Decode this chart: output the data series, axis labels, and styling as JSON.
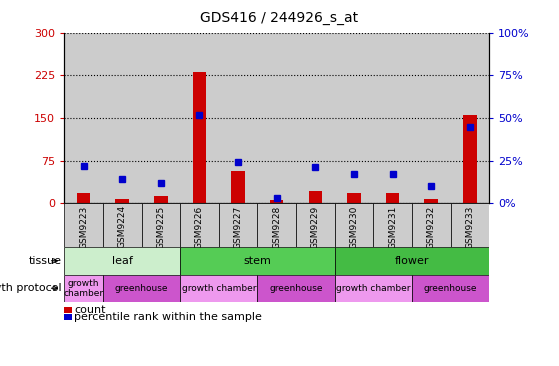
{
  "title": "GDS416 / 244926_s_at",
  "samples": [
    "GSM9223",
    "GSM9224",
    "GSM9225",
    "GSM9226",
    "GSM9227",
    "GSM9228",
    "GSM9229",
    "GSM9230",
    "GSM9231",
    "GSM9232",
    "GSM9233"
  ],
  "counts": [
    18,
    8,
    12,
    232,
    57,
    5,
    22,
    18,
    18,
    7,
    155
  ],
  "percentiles": [
    22,
    14,
    12,
    52,
    24,
    3,
    21,
    17,
    17,
    10,
    45
  ],
  "left_ylim": [
    0,
    300
  ],
  "right_ylim": [
    0,
    100
  ],
  "left_yticks": [
    0,
    75,
    150,
    225
  ],
  "right_yticks": [
    0,
    25,
    50,
    75,
    100
  ],
  "bar_color": "#cc0000",
  "dot_color": "#0000cc",
  "tissue_groups": [
    {
      "label": "leaf",
      "start": 0,
      "end": 3,
      "color": "#cceecc"
    },
    {
      "label": "stem",
      "start": 3,
      "end": 7,
      "color": "#55cc55"
    },
    {
      "label": "flower",
      "start": 7,
      "end": 11,
      "color": "#44bb44"
    }
  ],
  "growth_groups": [
    {
      "label": "growth\nchamber",
      "start": 0,
      "end": 1,
      "color": "#ee99ee"
    },
    {
      "label": "greenhouse",
      "start": 1,
      "end": 3,
      "color": "#cc55cc"
    },
    {
      "label": "growth chamber",
      "start": 3,
      "end": 5,
      "color": "#ee99ee"
    },
    {
      "label": "greenhouse",
      "start": 5,
      "end": 7,
      "color": "#cc55cc"
    },
    {
      "label": "growth chamber",
      "start": 7,
      "end": 9,
      "color": "#ee99ee"
    },
    {
      "label": "greenhouse",
      "start": 9,
      "end": 11,
      "color": "#cc55cc"
    }
  ],
  "row_labels": [
    "tissue",
    "growth protocol"
  ],
  "legend_count_label": "count",
  "legend_pct_label": "percentile rank within the sample",
  "bar_color_name": "#cc0000",
  "dot_color_name": "#0000cc",
  "xtick_bg": "#cccccc",
  "plot_bg": "#ffffff",
  "title_fontsize": 10
}
